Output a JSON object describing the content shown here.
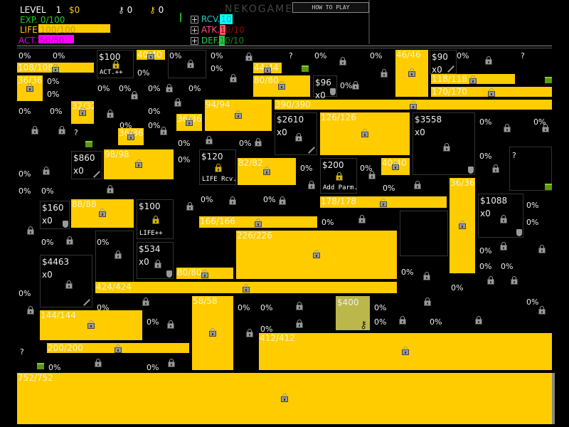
{
  "header": {
    "level_label": "LEVEL",
    "level": "1",
    "money": "$0",
    "keys_silver": "0",
    "keys_gold": "0",
    "brand": "NEKOGAMES",
    "how_to_play": "HOW TO PLAY",
    "exp_label": "EXP.",
    "exp_value": "0/100",
    "life_label": "LIFE",
    "life_value": "100/100",
    "act_label": "ACT.",
    "act_value": "50/50",
    "rcv_label": "RCV.",
    "rcv_value": "10",
    "atk_label": "ATK.",
    "atk_value": "10/10",
    "def_label": "DEF.",
    "def_value": "10/10"
  },
  "colors": {
    "bar": "#ffcc00",
    "exp": "#22cc22",
    "life": "#ffcc00",
    "act": "#ff00ff",
    "rcv": "#00ffff",
    "atk": "#ff5577",
    "def": "#22cc44",
    "purchased": "#bbb74a"
  },
  "icons": {
    "lock": "lock-icon",
    "gold_lock": "gold-lock-icon",
    "sword": "sword-icon",
    "shield": "shield-icon",
    "key": "key-icon",
    "chest": "chest-icon",
    "plus": "plus-icon"
  },
  "board": {
    "bars": [
      "108/108",
      "40/40",
      "36/36",
      "44/44",
      "80/80",
      "46/46",
      "118/118",
      "170/170",
      "390/390",
      "32/32",
      "94/94",
      "36/36",
      "36/36",
      "126/126",
      "98/98",
      "82/82",
      "40/40",
      "36/36",
      "178/178",
      "88/88",
      "166/166",
      "226/226",
      "80/80",
      "424/424",
      "58/58",
      "144/144",
      "200/200",
      "412/412",
      "752/752"
    ],
    "shops": [
      {
        "price": "$100",
        "tag": "ACT.++",
        "icon": "gold_lock"
      },
      {
        "price": "$90",
        "sub": "x0",
        "icon": "sword"
      },
      {
        "price": "$96",
        "sub": "x0",
        "icon": "shield"
      },
      {
        "price": "$2610",
        "sub": "x0",
        "icon": "sword"
      },
      {
        "price": "$3558",
        "sub": "x0",
        "icon": "shield"
      },
      {
        "price": "$860",
        "sub": "x0",
        "icon": "sword"
      },
      {
        "price": "$120",
        "tag": "LIFE Rcv.",
        "icon": "gold_lock"
      },
      {
        "price": "$200",
        "tag": "Add Parm.",
        "icon": "gold_lock"
      },
      {
        "price": "$160",
        "sub": "x0",
        "icon": "shield"
      },
      {
        "price": "$100",
        "tag": "LIFE++",
        "icon": "gold_lock"
      },
      {
        "price": "$534",
        "sub": "x0",
        "icon": "shield"
      },
      {
        "price": "$1088",
        "sub": "x0",
        "icon": "shield"
      },
      {
        "price": "$4463",
        "sub": "x0",
        "icon": "sword"
      },
      {
        "price": "$400",
        "icon": "key",
        "purchased": true
      }
    ],
    "percent_cells": [
      "0%",
      "0%",
      "0%",
      "0%",
      "0%",
      "0%",
      "0%",
      "0%",
      "0%",
      "0%",
      "0%",
      "0%",
      "0%",
      "0%",
      "0%",
      "0%",
      "0%",
      "0%",
      "0%",
      "0%",
      "0%",
      "0%",
      "0%",
      "0%",
      "0%",
      "0%",
      "0%",
      "0%",
      "0%",
      "0%",
      "0%",
      "0%",
      "0%",
      "0%",
      "0%",
      "0%",
      "0%",
      "0%",
      "0%",
      "0%",
      "0%",
      "0%",
      "0%",
      "0%",
      "0%",
      "0%",
      "0%",
      "0%",
      "0%",
      "0%",
      "0%",
      "0%",
      "0%",
      "0%",
      "0%",
      "0%",
      "0%"
    ],
    "unknown_cells": [
      "?",
      "?",
      "?",
      "?",
      "?"
    ]
  }
}
